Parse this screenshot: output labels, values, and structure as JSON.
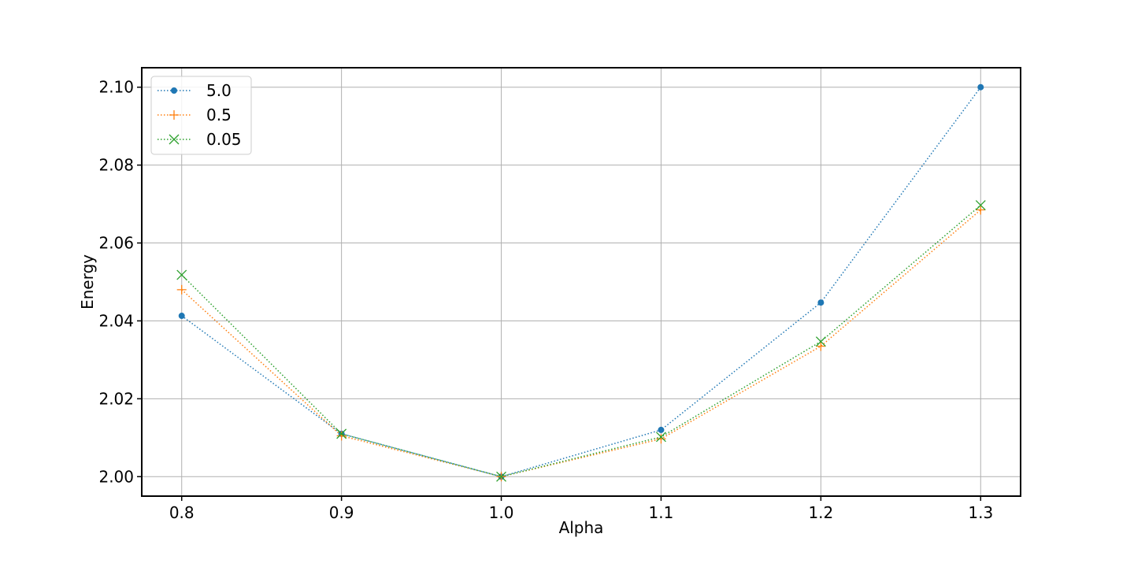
{
  "chart_data": {
    "type": "line",
    "title": "",
    "xlabel": "Alpha",
    "ylabel": "Energy",
    "x": [
      0.8,
      0.9,
      1.0,
      1.1,
      1.2,
      1.3
    ],
    "xlim": [
      0.775,
      1.325
    ],
    "ylim": [
      1.995,
      2.105
    ],
    "xticks": [
      "0.8",
      "0.9",
      "1.0",
      "1.1",
      "1.2",
      "1.3"
    ],
    "yticks": [
      "2.00",
      "2.02",
      "2.04",
      "2.06",
      "2.08",
      "2.10"
    ],
    "grid": true,
    "legend_position": "top-left",
    "line_style": "dotted",
    "series": [
      {
        "name": "5.0",
        "color": "#1f77b4",
        "marker": "circle",
        "values": [
          2.0413,
          2.011,
          2.0,
          2.012,
          2.0447,
          2.1
        ]
      },
      {
        "name": "0.5",
        "color": "#ff7f0e",
        "marker": "plus",
        "values": [
          2.048,
          2.0105,
          2.0,
          2.0097,
          2.0335,
          2.0685
        ]
      },
      {
        "name": "0.05",
        "color": "#2ca02c",
        "marker": "x",
        "values": [
          2.0518,
          2.011,
          2.0,
          2.0102,
          2.0347,
          2.0697
        ]
      }
    ]
  }
}
